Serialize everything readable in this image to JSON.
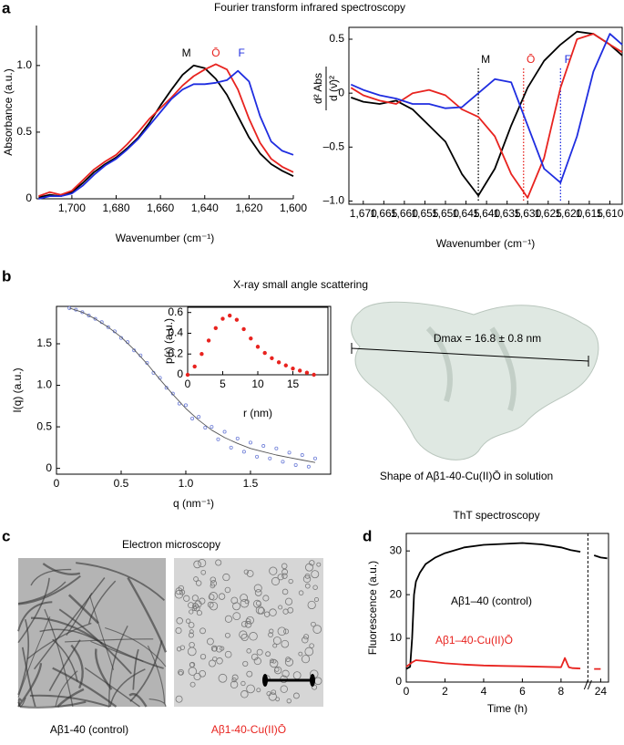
{
  "panels": {
    "a": {
      "label": "a",
      "title": "Fourier transform infrared spectroscopy"
    },
    "b": {
      "label": "b",
      "title": "X-ray small angle scattering",
      "shape_annotation": "Dmax = 16.8 ± 0.8 nm",
      "shape_caption": "Shape of Aβ1-40-Cu(II)Ō in solution"
    },
    "c": {
      "label": "c",
      "title": "Electron microscopy",
      "captions": [
        "Aβ1-40 (control)",
        "Aβ1-40-Cu(II)Ō"
      ]
    },
    "d": {
      "label": "d",
      "title": "ThT spectroscopy"
    }
  },
  "chart_data": [
    {
      "type": "line",
      "xlabel": "Wavenumber (cm⁻¹)",
      "ylabel": "Absorbance (a.u.)",
      "xlim": [
        1716,
        1600
      ],
      "ylim": [
        0,
        1.3
      ],
      "xticks": [
        {
          "value": 1700,
          "label": "1,700"
        },
        {
          "value": 1680,
          "label": "1,680"
        },
        {
          "value": 1660,
          "label": "1,660"
        },
        {
          "value": 1640,
          "label": "1,640"
        },
        {
          "value": 1620,
          "label": "1,620"
        },
        {
          "value": 1600,
          "label": "1,600"
        }
      ],
      "yticks": [
        0,
        0.5,
        {
          "value": 1,
          "label": "1.0"
        }
      ],
      "series": [
        {
          "name": "M",
          "color": "#000000",
          "x": [
            1715,
            1710,
            1705,
            1700,
            1695,
            1690,
            1685,
            1680,
            1675,
            1670,
            1665,
            1660,
            1655,
            1650,
            1645,
            1640,
            1635,
            1630,
            1625,
            1620,
            1615,
            1610,
            1605,
            1600
          ],
          "values": [
            0.01,
            0.03,
            0.02,
            0.05,
            0.12,
            0.2,
            0.26,
            0.31,
            0.38,
            0.46,
            0.57,
            0.7,
            0.82,
            0.93,
            1.0,
            0.98,
            0.9,
            0.78,
            0.62,
            0.46,
            0.34,
            0.26,
            0.21,
            0.17
          ]
        },
        {
          "name": "Ō",
          "color": "#e8231f",
          "x": [
            1715,
            1710,
            1705,
            1700,
            1695,
            1690,
            1685,
            1680,
            1675,
            1670,
            1665,
            1660,
            1655,
            1650,
            1645,
            1640,
            1635,
            1630,
            1625,
            1620,
            1615,
            1610,
            1605,
            1600
          ],
          "values": [
            0.02,
            0.05,
            0.03,
            0.06,
            0.14,
            0.22,
            0.28,
            0.33,
            0.41,
            0.5,
            0.6,
            0.68,
            0.76,
            0.85,
            0.92,
            0.97,
            1.01,
            0.97,
            0.82,
            0.6,
            0.42,
            0.3,
            0.24,
            0.2
          ]
        },
        {
          "name": "F",
          "color": "#1f2de0",
          "x": [
            1715,
            1710,
            1705,
            1700,
            1695,
            1690,
            1685,
            1680,
            1675,
            1670,
            1665,
            1660,
            1655,
            1650,
            1645,
            1640,
            1635,
            1630,
            1625,
            1620,
            1615,
            1610,
            1605,
            1600
          ],
          "values": [
            0,
            0.02,
            0.02,
            0.04,
            0.1,
            0.18,
            0.25,
            0.3,
            0.37,
            0.45,
            0.55,
            0.65,
            0.75,
            0.82,
            0.86,
            0.86,
            0.87,
            0.89,
            0.96,
            0.88,
            0.62,
            0.43,
            0.36,
            0.33
          ]
        }
      ]
    },
    {
      "type": "line",
      "xlabel": "Wavenumber (cm⁻¹)",
      "ylabel_top": "d² Abs",
      "ylabel_bottom": "d (ν̄)²",
      "xlim": [
        1673.5,
        1607
      ],
      "ylim": [
        -1.03,
        0.61
      ],
      "xticks": [
        {
          "value": 1670,
          "label": "1,670"
        },
        {
          "value": 1665,
          "label": "1,665"
        },
        {
          "value": 1660,
          "label": "1,660"
        },
        {
          "value": 1655,
          "label": "1,655"
        },
        {
          "value": 1650,
          "label": "1,650"
        },
        {
          "value": 1645,
          "label": "1,645"
        },
        {
          "value": 1640,
          "label": "1,640"
        },
        {
          "value": 1635,
          "label": "1,635"
        },
        {
          "value": 1630,
          "label": "1,630"
        },
        {
          "value": 1625,
          "label": "1,625"
        },
        {
          "value": 1620,
          "label": "1,620"
        },
        {
          "value": 1615,
          "label": "1,615"
        },
        {
          "value": 1610,
          "label": "1,610"
        }
      ],
      "yticks": [
        {
          "value": -1,
          "label": "–1.0"
        },
        {
          "value": -0.5,
          "label": "–0.5"
        },
        0,
        0.5
      ],
      "minima": [
        1642,
        1631,
        1622
      ],
      "series": [
        {
          "name": "M",
          "color": "#000000",
          "x": [
            1673,
            1670,
            1666,
            1662,
            1658,
            1654,
            1650,
            1646,
            1642,
            1638,
            1634,
            1630,
            1626,
            1622,
            1618,
            1614,
            1610,
            1607
          ],
          "values": [
            -0.04,
            -0.08,
            -0.1,
            -0.07,
            -0.15,
            -0.3,
            -0.45,
            -0.75,
            -0.95,
            -0.7,
            -0.3,
            0.05,
            0.3,
            0.45,
            0.57,
            0.55,
            0.45,
            0.35
          ]
        },
        {
          "name": "Ō",
          "color": "#e8231f",
          "x": [
            1673,
            1670,
            1666,
            1662,
            1658,
            1654,
            1650,
            1646,
            1642,
            1638,
            1634,
            1630,
            1626,
            1622,
            1618,
            1614,
            1610,
            1607
          ],
          "values": [
            0.05,
            -0.02,
            -0.07,
            -0.1,
            0.0,
            0.03,
            -0.02,
            -0.15,
            -0.22,
            -0.4,
            -0.75,
            -0.97,
            -0.6,
            0.05,
            0.5,
            0.55,
            0.45,
            0.38
          ]
        },
        {
          "name": "F",
          "color": "#1f2de0",
          "x": [
            1673,
            1670,
            1666,
            1662,
            1658,
            1654,
            1650,
            1646,
            1642,
            1638,
            1634,
            1630,
            1626,
            1622,
            1618,
            1614,
            1610,
            1607
          ],
          "values": [
            0.08,
            0.03,
            -0.02,
            -0.05,
            -0.1,
            -0.1,
            -0.14,
            -0.13,
            0.0,
            0.13,
            0.1,
            -0.3,
            -0.7,
            -0.83,
            -0.4,
            0.2,
            0.55,
            0.45
          ]
        }
      ]
    },
    {
      "type": "scatter",
      "xlabel": "q (nm⁻¹)",
      "ylabel": "I(q) (a.u.)",
      "xlim": [
        0,
        2.12
      ],
      "ylim": [
        -0.07,
        1.95
      ],
      "xticks": [
        0,
        0.5,
        {
          "value": 1,
          "label": "1.0"
        },
        1.5
      ],
      "yticks": [
        0,
        0.5,
        {
          "value": 1,
          "label": "1.0"
        },
        1.5
      ],
      "series": [
        {
          "mode": "markers",
          "color": "#6f7fd8",
          "x": [
            0.1,
            0.15,
            0.2,
            0.25,
            0.3,
            0.35,
            0.4,
            0.45,
            0.5,
            0.55,
            0.6,
            0.65,
            0.7,
            0.75,
            0.8,
            0.85,
            0.9,
            0.95,
            1.0,
            1.05,
            1.1,
            1.15,
            1.2,
            1.25,
            1.3,
            1.35,
            1.4,
            1.45,
            1.5,
            1.55,
            1.6,
            1.65,
            1.7,
            1.75,
            1.8,
            1.85,
            1.9,
            1.95,
            2.0
          ],
          "values": [
            1.93,
            1.91,
            1.88,
            1.84,
            1.8,
            1.76,
            1.7,
            1.65,
            1.57,
            1.52,
            1.42,
            1.36,
            1.27,
            1.15,
            1.09,
            0.97,
            0.9,
            0.78,
            0.76,
            0.6,
            0.62,
            0.49,
            0.5,
            0.35,
            0.44,
            0.25,
            0.36,
            0.2,
            0.31,
            0.14,
            0.27,
            0.12,
            0.24,
            0.08,
            0.19,
            0.04,
            0.16,
            0.02,
            0.12
          ]
        },
        {
          "mode": "line",
          "color": "#555555",
          "x": [
            0.1,
            0.2,
            0.3,
            0.4,
            0.5,
            0.6,
            0.7,
            0.8,
            0.9,
            1.0,
            1.1,
            1.2,
            1.3,
            1.4,
            1.5,
            1.6,
            1.7,
            1.8,
            1.9,
            2.0
          ],
          "values": [
            1.93,
            1.88,
            1.8,
            1.7,
            1.58,
            1.43,
            1.26,
            1.07,
            0.89,
            0.72,
            0.58,
            0.46,
            0.37,
            0.3,
            0.24,
            0.2,
            0.16,
            0.13,
            0.1,
            0.07
          ]
        }
      ]
    },
    {
      "type": "scatter",
      "xlabel": "r (nm)",
      "ylabel": "p(r) (a.u.)",
      "xlim": [
        0,
        20
      ],
      "ylim": [
        0,
        0.65
      ],
      "xticks": [
        0,
        5,
        10,
        15
      ],
      "yticks": [
        0,
        0.2,
        0.4,
        0.6
      ],
      "series": [
        {
          "mode": "markers",
          "color": "#e8231f",
          "x": [
            0,
            1,
            2,
            3,
            4,
            5,
            6,
            7,
            8,
            9,
            10,
            11,
            12,
            13,
            14,
            15,
            16,
            17,
            18
          ],
          "values": [
            0,
            0.08,
            0.2,
            0.33,
            0.45,
            0.54,
            0.57,
            0.53,
            0.44,
            0.35,
            0.27,
            0.21,
            0.16,
            0.12,
            0.09,
            0.06,
            0.04,
            0.02,
            0
          ]
        }
      ]
    },
    {
      "type": "line",
      "xlabel": "Time (h)",
      "ylabel": "Fluorescence (a.u.)",
      "xlim": [
        0,
        24.6
      ],
      "xbreak": [
        9.2,
        23.3
      ],
      "ylim": [
        0,
        34
      ],
      "xticks": [
        0,
        2,
        4,
        6,
        8,
        24
      ],
      "yticks": [
        0,
        10,
        20,
        30
      ],
      "series": [
        {
          "name": "Aβ1–40 (control)",
          "color": "#000000",
          "x": [
            0,
            0.2,
            0.3,
            0.4,
            0.5,
            0.7,
            1,
            1.5,
            2,
            3,
            4,
            5,
            6,
            7,
            8,
            8.5,
            9,
            16,
            23.5,
            24,
            24.5
          ],
          "values": [
            3,
            3.5,
            10,
            20,
            23,
            25,
            27,
            28.5,
            29.5,
            30.8,
            31.4,
            31.6,
            31.8,
            31.5,
            30.8,
            30.2,
            29.8,
            null,
            29,
            28.5,
            28.3
          ]
        },
        {
          "name": "Aβ1–40-Cu(II)Ō",
          "color": "#e8231f",
          "x": [
            0,
            0.3,
            0.5,
            1,
            2,
            3,
            4,
            5,
            6,
            7,
            8,
            8.2,
            8.4,
            8.6,
            9,
            16,
            23.5,
            24
          ],
          "values": [
            3.5,
            4.5,
            5,
            4.8,
            4.3,
            4,
            3.8,
            3.7,
            3.6,
            3.5,
            3.4,
            5.5,
            3.4,
            3.2,
            3.1,
            null,
            3,
            3
          ]
        }
      ]
    }
  ]
}
